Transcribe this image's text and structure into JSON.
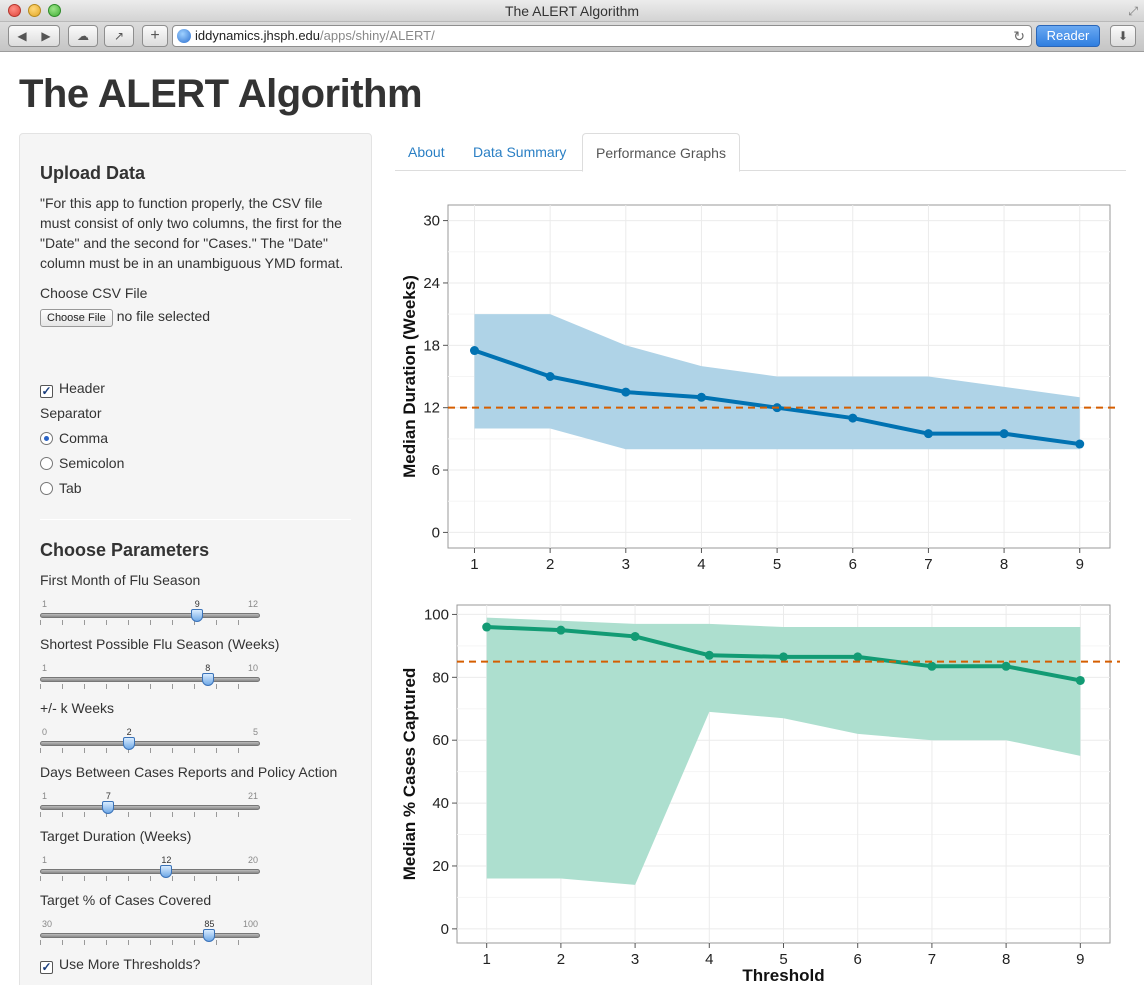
{
  "browser": {
    "window_title": "The ALERT Algorithm",
    "url_host": "iddynamics.jhsph.edu",
    "url_path": "/apps/shiny/ALERT/",
    "reader_label": "Reader",
    "icons": [
      "back-icon",
      "forward-icon",
      "cloud-icon",
      "share-icon",
      "plus-icon",
      "globe-icon",
      "reload-icon",
      "download-icon"
    ]
  },
  "page": {
    "title": "The ALERT Algorithm"
  },
  "sidebar": {
    "upload_heading": "Upload Data",
    "upload_description": "\"For this app to function properly, the CSV file must consist of only two columns, the first for the \"Date\" and the second for \"Cases.\" The \"Date\" column must be in an unambiguous YMD format.",
    "choose_file_label": "Choose CSV File",
    "choose_file_button": "Choose File",
    "file_status": "no file selected",
    "header_checkbox": {
      "label": "Header",
      "checked": true
    },
    "separator_label": "Separator",
    "separator_options": [
      {
        "label": "Comma",
        "selected": true
      },
      {
        "label": "Semicolon",
        "selected": false
      },
      {
        "label": "Tab",
        "selected": false
      }
    ],
    "params_heading": "Choose Parameters",
    "sliders": [
      {
        "label": "First Month of Flu Season",
        "min": 1,
        "max": 12,
        "value": 9
      },
      {
        "label": "Shortest Possible Flu Season (Weeks)",
        "min": 1,
        "max": 10,
        "value": 8
      },
      {
        "label": "+/- k Weeks",
        "min": 0,
        "max": 5,
        "value": 2
      },
      {
        "label": "Days Between Cases Reports and Policy Action",
        "min": 1,
        "max": 21,
        "value": 7
      },
      {
        "label": "Target Duration (Weeks)",
        "min": 1,
        "max": 20,
        "value": 12
      },
      {
        "label": "Target % of Cases Covered",
        "min": 30,
        "max": 100,
        "value": 85
      }
    ],
    "more_thresholds": {
      "label": "Use More Thresholds?",
      "checked": true
    }
  },
  "tabs": [
    {
      "label": "About",
      "active": false
    },
    {
      "label": "Data Summary",
      "active": false
    },
    {
      "label": "Performance Graphs",
      "active": true
    }
  ],
  "chart_data": [
    {
      "type": "line",
      "x": [
        1,
        2,
        3,
        4,
        5,
        6,
        7,
        8,
        9
      ],
      "series": [
        {
          "values": [
            17.5,
            15,
            13.5,
            13,
            12,
            11,
            9.5,
            9.5,
            8.5
          ]
        }
      ],
      "band_low": [
        10,
        10,
        8,
        8,
        8,
        8,
        8,
        8,
        8
      ],
      "band_high": [
        21,
        21,
        18,
        16,
        15,
        15,
        15,
        14,
        13
      ],
      "reference_line": 12,
      "xlabel": "",
      "ylabel": "Median Duration (Weeks)",
      "xlim": [
        0.65,
        9.4
      ],
      "ylim": [
        -1.5,
        31.5
      ],
      "yticks": [
        0,
        6,
        12,
        18,
        24,
        30
      ],
      "xticks": [
        1,
        2,
        3,
        4,
        5,
        6,
        7,
        8,
        9
      ],
      "grid": true,
      "line_color": "#0072B2",
      "band_color": "#AFD3E7",
      "reference_color": "#D55E00"
    },
    {
      "type": "line",
      "x": [
        1,
        2,
        3,
        4,
        5,
        6,
        7,
        8,
        9
      ],
      "series": [
        {
          "values": [
            96,
            95,
            93,
            87,
            86.5,
            86.5,
            83.5,
            83.5,
            79
          ]
        }
      ],
      "band_low": [
        16,
        16,
        14,
        69,
        67,
        62,
        60,
        60,
        55
      ],
      "band_high": [
        99,
        98,
        97,
        97,
        96,
        96,
        96,
        96,
        96
      ],
      "reference_line": 85,
      "xlabel": "Threshold",
      "ylabel": "Median % Cases Captured",
      "xlim": [
        0.6,
        9.4
      ],
      "ylim": [
        -4.5,
        103
      ],
      "yticks": [
        0,
        20,
        40,
        60,
        80,
        100
      ],
      "xticks": [
        1,
        2,
        3,
        4,
        5,
        6,
        7,
        8,
        9
      ],
      "grid": true,
      "line_color": "#129B74",
      "band_color": "#ADDFCF",
      "reference_color": "#D55E00"
    }
  ]
}
